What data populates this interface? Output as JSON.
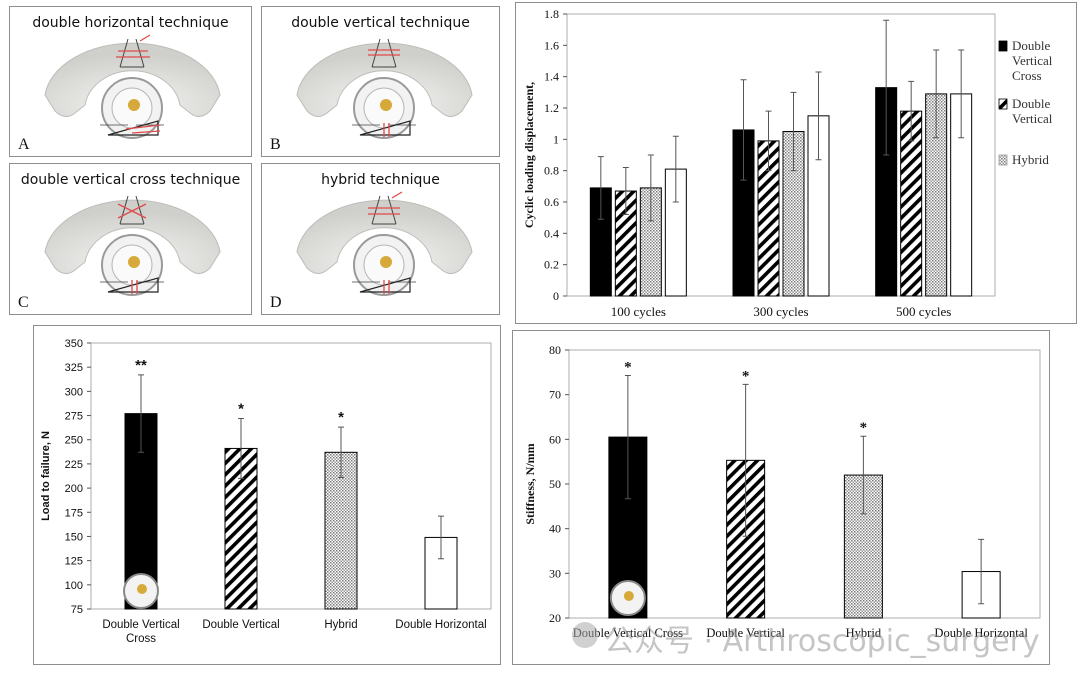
{
  "technique_panels": [
    {
      "letter": "A",
      "title": "double horizontal technique",
      "suture_color": "#e04a4a",
      "style": "horizontal"
    },
    {
      "letter": "B",
      "title": "double vertical technique",
      "suture_color": "#e04a4a",
      "style": "vertical"
    },
    {
      "letter": "C",
      "title": "double vertical cross technique",
      "suture_color": "#e04a4a",
      "style": "cross"
    },
    {
      "letter": "D",
      "title": "hybrid technique",
      "suture_color": "#e04a4a",
      "style": "hybrid"
    }
  ],
  "chart_data": [
    {
      "type": "bar",
      "categories": [
        "100 cycles",
        "300 cycles",
        "500 cycles"
      ],
      "series": [
        {
          "name": "Double Vertical Cross",
          "pattern": "solid",
          "values": [
            0.69,
            1.06,
            1.33
          ],
          "errors": [
            0.2,
            0.32,
            0.43
          ]
        },
        {
          "name": "Double Vertical",
          "pattern": "diagonal",
          "values": [
            0.67,
            0.99,
            1.18
          ],
          "errors": [
            0.15,
            0.19,
            0.19
          ]
        },
        {
          "name": "Hybrid",
          "pattern": "dotted",
          "values": [
            0.69,
            1.05,
            1.29
          ],
          "errors": [
            0.21,
            0.25,
            0.28
          ]
        },
        {
          "name": "",
          "pattern": "open",
          "values": [
            0.81,
            1.15,
            1.29
          ],
          "errors": [
            0.21,
            0.28,
            0.28
          ]
        }
      ],
      "legend_labels": [
        [
          "Double",
          "Vertical",
          "Cross"
        ],
        [
          "Double",
          "Vertical"
        ],
        [
          "Hybrid"
        ]
      ],
      "ylabel": "Cyclic loading displacement,",
      "ylim": [
        0,
        1.8
      ],
      "yticks": [
        "0",
        "0.2",
        "0.4",
        "0.6",
        "0.8",
        "1",
        "1.2",
        "1.4",
        "1.6",
        "1.8"
      ],
      "legend_position": "right"
    },
    {
      "type": "bar",
      "categories": [
        "Double Vertical Cross",
        "Double Vertical",
        "Hybrid",
        "Double Horizontal"
      ],
      "tick_lines": [
        [
          "Double Vertical",
          "Cross"
        ],
        [
          "Double Vertical"
        ],
        [
          "Hybrid"
        ],
        [
          "Double Horizontal"
        ]
      ],
      "values": [
        277,
        241,
        237,
        149
      ],
      "errors": [
        40,
        31,
        26,
        22
      ],
      "patterns": [
        "solid",
        "diagonal",
        "dotted",
        "open"
      ],
      "significance": [
        "**",
        "*",
        "*",
        ""
      ],
      "ylabel": "Load to failure, N",
      "ylim": [
        75,
        350
      ],
      "yticks": [
        "75",
        "100",
        "125",
        "150",
        "175",
        "200",
        "225",
        "250",
        "275",
        "300",
        "325",
        "350"
      ]
    },
    {
      "type": "bar",
      "categories": [
        "Double Vertical Cross",
        "Double Vertical",
        "Hybrid",
        "Double Horizontal"
      ],
      "values": [
        60.5,
        55.3,
        52,
        30.4
      ],
      "errors": [
        13.8,
        17,
        8.7,
        7.2
      ],
      "patterns": [
        "solid",
        "diagonal",
        "dotted",
        "open"
      ],
      "significance": [
        "*",
        "*",
        "*",
        ""
      ],
      "ylabel": "Stiffness, N/mm",
      "ylim": [
        20,
        80
      ],
      "yticks": [
        "20",
        "30",
        "40",
        "50",
        "60",
        "70",
        "80"
      ]
    }
  ],
  "watermark": "公众号 · Arthroscopic_surgery"
}
